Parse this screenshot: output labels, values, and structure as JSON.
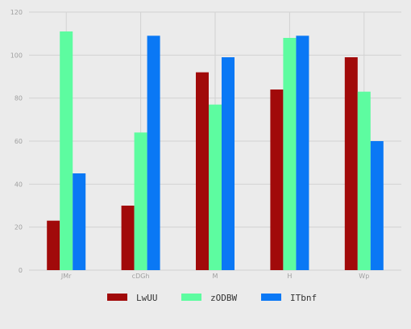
{
  "chart_data": {
    "type": "bar",
    "title": "",
    "xlabel": "",
    "ylabel": "",
    "categories": [
      "JMr",
      "cDGh",
      "M",
      "H",
      "Wp"
    ],
    "series": [
      {
        "name": "LwUU",
        "color": "#a10a0a",
        "values": [
          23,
          30,
          92,
          84,
          99
        ]
      },
      {
        "name": "zODBW",
        "color": "#5dfca0",
        "values": [
          111,
          64,
          77,
          108,
          83
        ]
      },
      {
        "name": "ITbnf",
        "color": "#0a78f5",
        "values": [
          45,
          109,
          99,
          109,
          60
        ]
      }
    ],
    "ylim": [
      0,
      120
    ],
    "yticks": [
      0,
      20,
      40,
      60,
      80,
      100,
      120
    ],
    "grid": true,
    "legend_position": "bottom-center",
    "background_color": "#ebebeb",
    "grid_color": "#d2d2d2"
  }
}
